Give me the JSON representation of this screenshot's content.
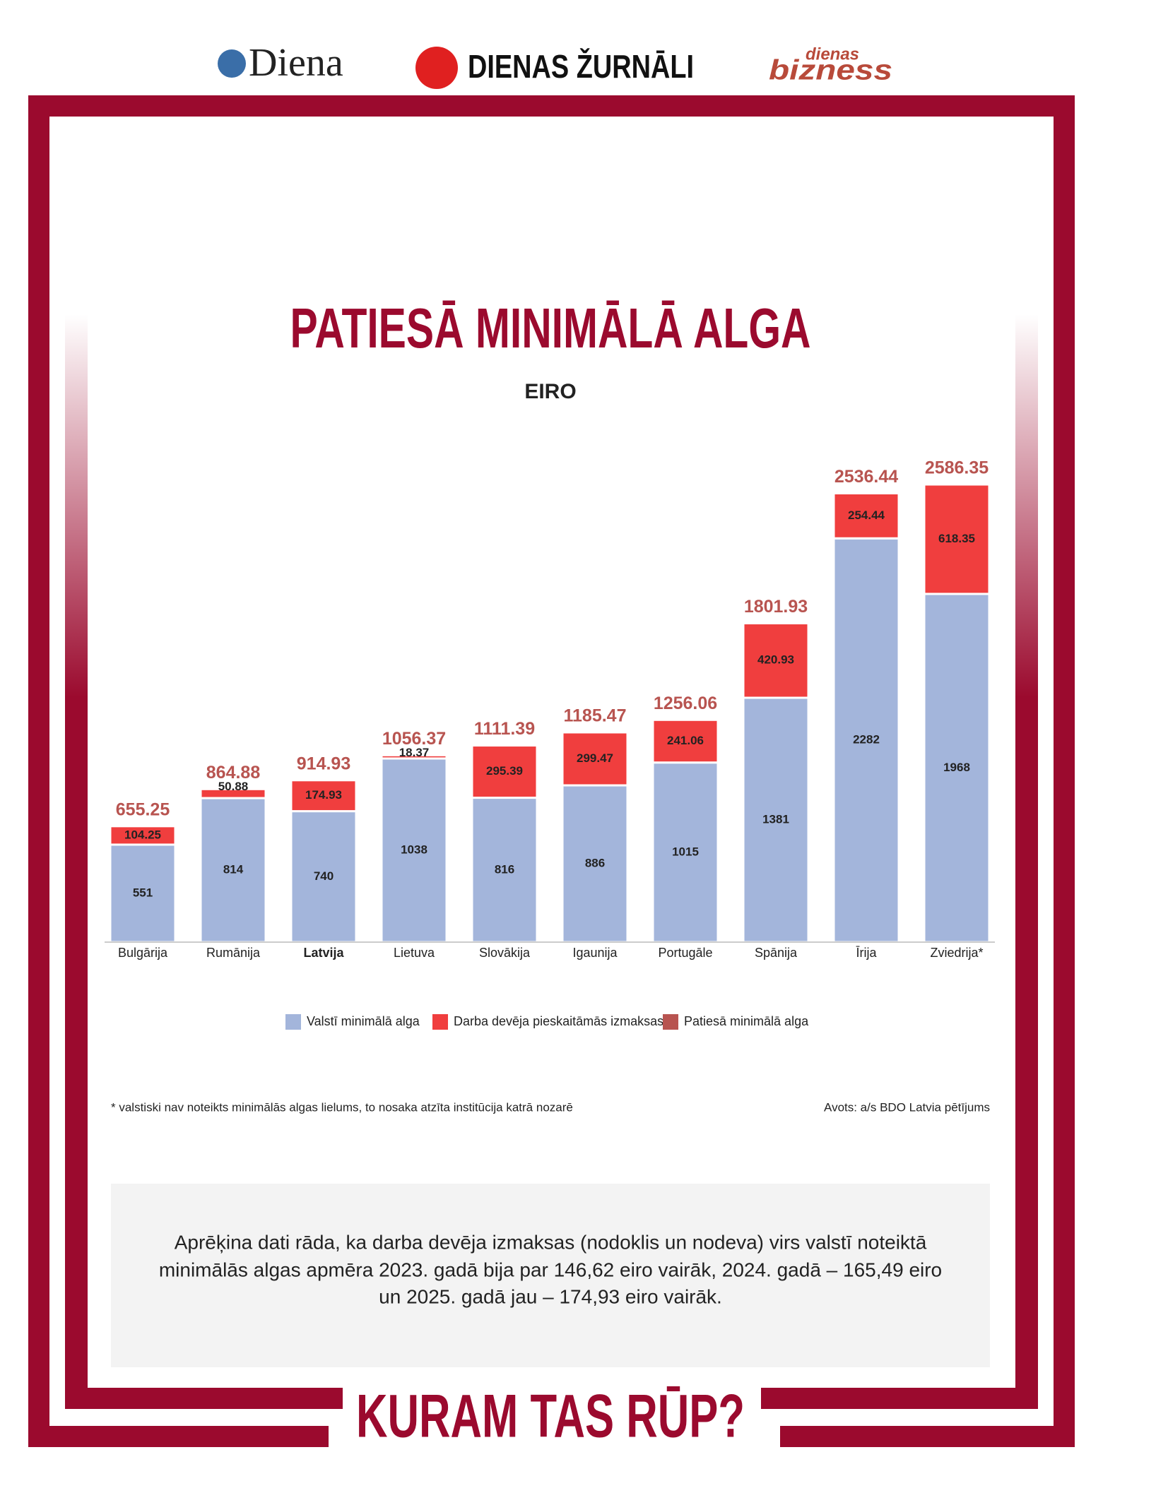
{
  "header": {
    "logos": [
      "Diena",
      "DIENAS ŽURNĀLI",
      "dienas",
      "bizness"
    ]
  },
  "chart_data": {
    "type": "stacked_bar",
    "title": "PATIESĀ MINIMĀLĀ ALGA",
    "subtitle": "EIRO",
    "categories": [
      "Bulgārija",
      "Rumānija",
      "Latvija",
      "Lietuva",
      "Slovākija",
      "Igaunija",
      "Portugāle",
      "Spānija",
      "Īrija",
      "Zviedrija*"
    ],
    "highlight": "Latvija",
    "series": [
      {
        "name": "Valstī minimālā alga",
        "color": "#a3b5db",
        "values": [
          551,
          814,
          740,
          1038,
          816,
          886,
          1015,
          1381,
          2282,
          1968
        ]
      },
      {
        "name": "Darba devēja pieskaitāmās izmaksas",
        "color": "#f03e3e",
        "values": [
          104.25,
          50.88,
          174.93,
          18.37,
          295.39,
          299.47,
          241.06,
          420.93,
          254.44,
          618.35
        ]
      },
      {
        "name": "Patiesā minimālā alga",
        "color": "#b85450",
        "values": [
          655.25,
          864.88,
          914.93,
          1056.37,
          1111.39,
          1185.47,
          1256.06,
          1801.93,
          2536.44,
          2586.35
        ]
      }
    ],
    "footnote": "* valstiski nav noteikts minimālās algas lielums, to nosaka atzīta institūcija katrā nozarē",
    "source": "Avots: a/s BDO Latvia pētījums"
  },
  "note": {
    "lines": [
      "Aprēķina dati rāda, ka darba devēja izmaksas (nodoklis un nodeva) virs valstī noteiktā",
      "minimālās algas apmēra 2023. gadā bija par 146,62 eiro vairāk, 2024. gadā – 165,49 eiro",
      "un 2025. gadā jau – 174,93 eiro vairāk."
    ]
  },
  "footer": {
    "title": "KURAM TAS RŪP?"
  }
}
